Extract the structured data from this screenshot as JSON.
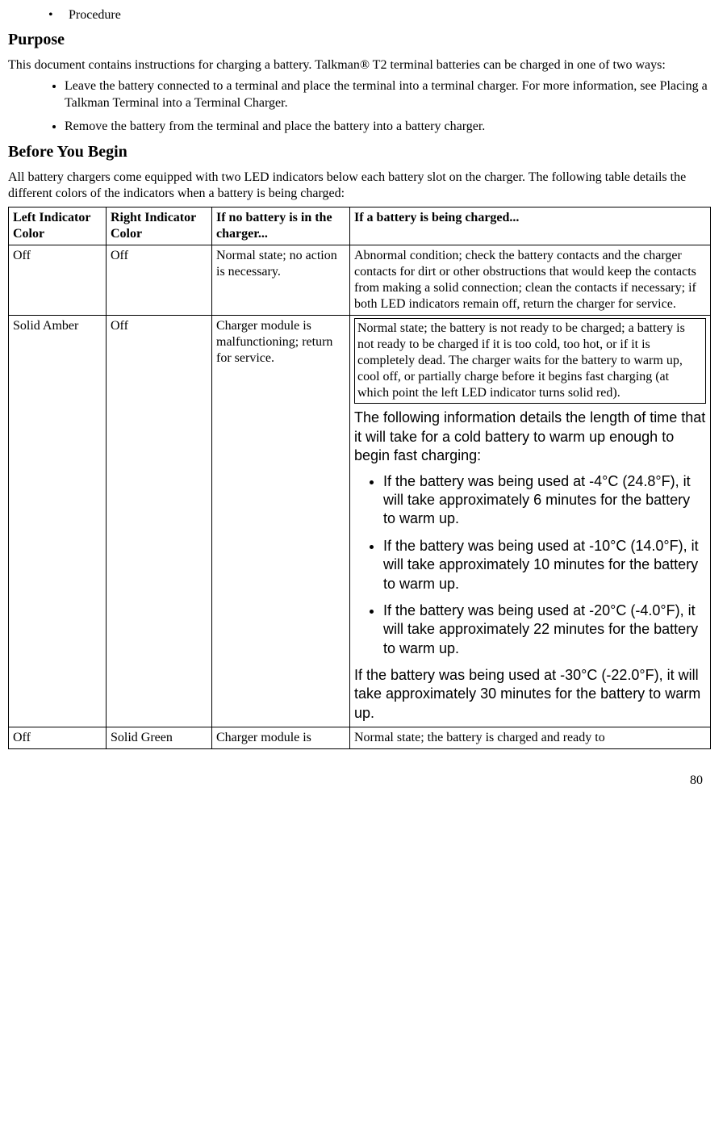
{
  "top_bullet": "Procedure",
  "h_purpose": "Purpose",
  "purpose_p": "This document contains instructions for charging a battery. Talkman® T2 terminal batteries can be charged in one of two ways:",
  "purpose_li1": "Leave the battery connected to a terminal and place the terminal into a terminal charger. For more information, see Placing a Talkman Terminal into a Terminal Charger.",
  "purpose_li2": "Remove the battery from the terminal and place the battery into a battery charger.",
  "h_before": "Before You Begin",
  "before_p": "All battery chargers come equipped with two LED indicators below each battery slot on the charger. The following table details the different colors of the indicators when a battery is being charged:",
  "table": {
    "headers": {
      "c1": "Left Indicator Color",
      "c2": "Right Indicator Color",
      "c3": "If no battery is in the charger...",
      "c4": "If a battery is being charged..."
    },
    "row1": {
      "c1": "Off",
      "c2": " Off",
      "c3": "Normal state; no action is necessary.",
      "c4": "Abnormal condition; check the battery contacts and the charger contacts for dirt or other obstructions that would keep the contacts from making a solid connection; clean the contacts if necessary; if both LED indicators remain off, return the charger for service."
    },
    "row2": {
      "c1": " Solid Amber",
      "c2": "Off",
      "c3": "Charger module is malfunctioning; return for service.",
      "box": "Normal state; the battery is not ready to be charged; a battery is not ready to be charged if it is too cold, too hot, or if it is completely dead. The charger waits for the battery to warm up, cool off, or partially charge before it begins fast charging (at which point the left LED indicator turns solid red).",
      "arial_intro": "The following information details the length of time that it will take for a cold battery to warm up enough to begin fast charging:",
      "arial_li1": "If the battery was being used at -4°C (24.8°F), it will take approximately 6 minutes for the battery to warm up.",
      "arial_li2": "If the battery was being used at -10°C (14.0°F), it will take approximately 10 minutes for the battery to warm up.",
      "arial_li3": "If the battery was being used at -20°C (-4.0°F), it will take approximately 22 minutes for the battery to warm up.",
      "arial_after": "If the battery was being used at -30°C (-22.0°F), it will take approximately 30 minutes for the battery to warm up."
    },
    "row3": {
      "c1": " Off",
      "c2": " Solid Green",
      "c3": "Charger module is",
      "c4": " Normal state; the battery is charged and ready to"
    }
  },
  "page_num": "80"
}
